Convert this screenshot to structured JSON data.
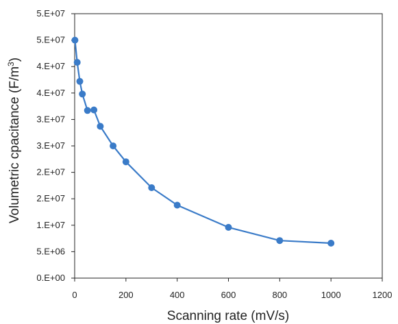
{
  "chart_data": {
    "type": "scatter",
    "title": "",
    "xlabel": "Scanning rate (mV/s)",
    "ylabel_main": "Volumetric cpacitance (F/m",
    "ylabel_sup": "3",
    "ylabel_end": ")",
    "xlim": [
      0,
      1200
    ],
    "ylim": [
      0,
      50000000
    ],
    "x_ticks": [
      0,
      200,
      400,
      600,
      800,
      1000,
      1200
    ],
    "x_tick_labels": [
      "0",
      "200",
      "400",
      "600",
      "800",
      "1000",
      "1200"
    ],
    "y_ticks": [
      0,
      5000000,
      10000000,
      15000000,
      20000000,
      25000000,
      30000000,
      35000000,
      40000000,
      45000000,
      50000000
    ],
    "y_tick_labels": [
      "0.E+00",
      "5.E+06",
      "1.E+07",
      "2.E+07",
      "2.E+07",
      "3.E+07",
      "3.E+07",
      "4.E+07",
      "4.E+07",
      "5.E+07",
      "5.E+07"
    ],
    "grid": false,
    "legend": "none",
    "series": [
      {
        "color": "#3A7BC8",
        "x": [
          1,
          10,
          20,
          30,
          50,
          75,
          100,
          150,
          200,
          300,
          400,
          600,
          800,
          1000
        ],
        "y": [
          45000000,
          40800000,
          37200000,
          34800000,
          31700000,
          31800000,
          28700000,
          25000000,
          22000000,
          17100000,
          13800000,
          9600000,
          7100000,
          6600000
        ]
      }
    ]
  }
}
